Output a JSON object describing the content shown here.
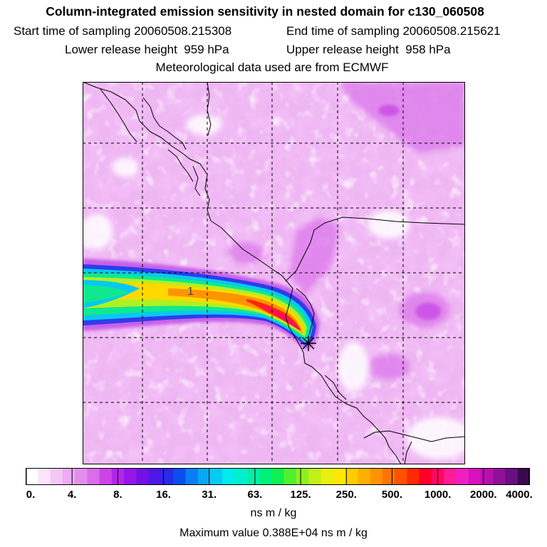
{
  "title": "Column-integrated emission sensitivity in nested domain for c130_060508",
  "sampling": {
    "start_label": "Start time of sampling 20060508.215308",
    "end_label": "End time of sampling 20060508.215621"
  },
  "release": {
    "lower_label": "Lower release height  959 hPa",
    "upper_label": "Upper release height  958 hPa"
  },
  "meteo_label": "Meteorological data used are from ECMWF",
  "map": {
    "contour_label": "1",
    "source_marker": "asterisk-marker",
    "colors": {
      "background": "#eaaaf0",
      "light": "#f6dcfa",
      "land_line": "#000000",
      "grid_line": "#000000"
    }
  },
  "colorbar": {
    "unit": "ns m / kg",
    "ticks": [
      "0.",
      "4.",
      "8.",
      "16.",
      "31.",
      "63.",
      "125.",
      "250.",
      "500.",
      "1000.",
      "2000.",
      "4000."
    ],
    "colors": [
      "#ffffff",
      "#fbe4fc",
      "#f4c8f6",
      "#eeaaf2",
      "#e58ded",
      "#da6de8",
      "#cc44e6",
      "#b325e8",
      "#9516e6",
      "#7312e6",
      "#4e18e6",
      "#2a2ae8",
      "#0a4ef0",
      "#0a7cf4",
      "#08a8f4",
      "#06ccf4",
      "#00ecec",
      "#00f0cc",
      "#00f0a4",
      "#00f07a",
      "#10f050",
      "#50f030",
      "#8cf020",
      "#c0f018",
      "#e8f010",
      "#ffe800",
      "#ffcc00",
      "#ffb000",
      "#ff9400",
      "#ff7400",
      "#ff5200",
      "#ff2a00",
      "#ff0028",
      "#ff0860",
      "#ff1c96",
      "#f020c0",
      "#d810c0",
      "#b810b0",
      "#90109a",
      "#681080",
      "#3a0a50"
    ]
  },
  "max_value_label": "Maximum value  0.388E+04 ns m / kg"
}
